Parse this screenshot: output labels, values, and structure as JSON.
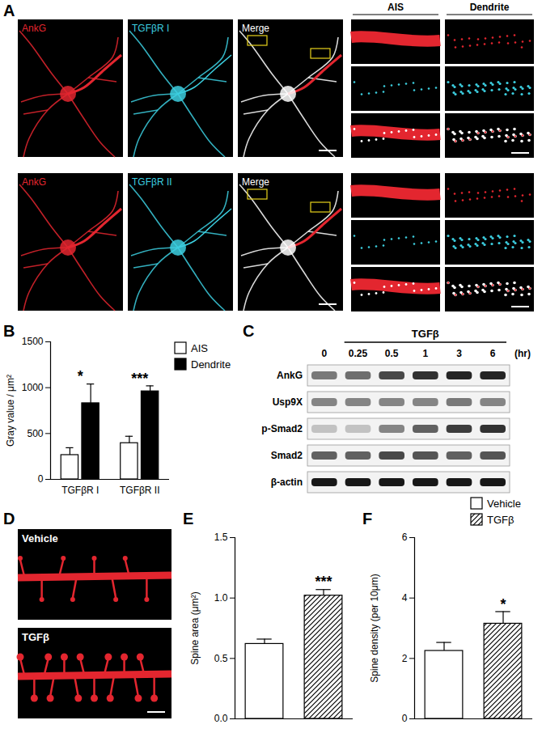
{
  "panel_A": {
    "label": "A",
    "rows": [
      {
        "channels": [
          "AnkG",
          "TGFβR I",
          "Merge"
        ]
      },
      {
        "channels": [
          "AnkG",
          "TGFβR II",
          "Merge"
        ]
      }
    ],
    "inset_headers": [
      "AIS",
      "Dendrite"
    ]
  },
  "panel_C": {
    "label": "C",
    "treatment": "TGFβ",
    "unit": "(hr)",
    "times": [
      0,
      0.25,
      0.5,
      1,
      3,
      6
    ],
    "rows": [
      {
        "name": "AnkG",
        "intensity": [
          0.5,
          0.55,
          0.7,
          0.8,
          0.85,
          0.85
        ]
      },
      {
        "name": "Usp9X",
        "intensity": [
          0.45,
          0.45,
          0.45,
          0.45,
          0.5,
          0.45
        ]
      },
      {
        "name": "p-Smad2",
        "intensity": [
          0.2,
          0.2,
          0.45,
          0.6,
          0.75,
          0.8
        ]
      },
      {
        "name": "Smad2",
        "intensity": [
          0.6,
          0.6,
          0.7,
          0.65,
          0.6,
          0.65
        ]
      },
      {
        "name": "β-actin",
        "intensity": [
          0.9,
          0.9,
          0.9,
          0.9,
          0.9,
          0.9
        ]
      }
    ]
  },
  "panel_D": {
    "label": "D",
    "images": [
      "Vehicle",
      "TGFβ"
    ]
  },
  "chart_data": [
    {
      "panel": "B",
      "type": "bar",
      "y_label": "Gray value / μm²",
      "categories": [
        "TGFβR I",
        "TGFβR II"
      ],
      "series": [
        {
          "name": "AIS",
          "color": "#ffffff",
          "values": [
            265,
            395
          ],
          "errors": [
            80,
            75
          ]
        },
        {
          "name": "Dendrite",
          "color": "#000000",
          "values": [
            830,
            960
          ],
          "errors": [
            210,
            60
          ]
        }
      ],
      "ylim": [
        0,
        1500
      ],
      "yticks": [
        0,
        500,
        1000,
        1500
      ],
      "annotations": [
        {
          "category": "TGFβR I",
          "text": "*"
        },
        {
          "category": "TGFβR II",
          "text": "***"
        }
      ]
    },
    {
      "panel": "E",
      "type": "bar",
      "y_label": "Spine area (μm²)",
      "categories": [
        "Vehicle",
        "TGFβ"
      ],
      "values": [
        0.62,
        1.02
      ],
      "errors": [
        0.04,
        0.05
      ],
      "colors": [
        "#ffffff",
        "hatch"
      ],
      "tick_labels": "y",
      "ylim": [
        0,
        1.5
      ],
      "yticks": [
        {
          "value": 0,
          "label": "0.0"
        },
        {
          "value": 0.5,
          "label": "0.5"
        },
        {
          "value": 1,
          "label": "1.0"
        },
        {
          "value": 1.5,
          "label": "1.5"
        }
      ],
      "annotations": [
        {
          "category": "TGFβ",
          "text": "***"
        }
      ]
    },
    {
      "panel": "F",
      "type": "bar",
      "y_label": "Spine density (per 10μm)",
      "categories": [
        "Vehicle",
        "TGFβ"
      ],
      "values": [
        2.25,
        3.15
      ],
      "errors": [
        0.28,
        0.4
      ],
      "colors": [
        "#ffffff",
        "hatch"
      ],
      "tick_labels": "y",
      "ylim": [
        0,
        6
      ],
      "yticks": [
        0,
        2,
        4,
        6
      ],
      "annotations": [
        {
          "category": "TGFβ",
          "text": "*"
        }
      ]
    }
  ]
}
